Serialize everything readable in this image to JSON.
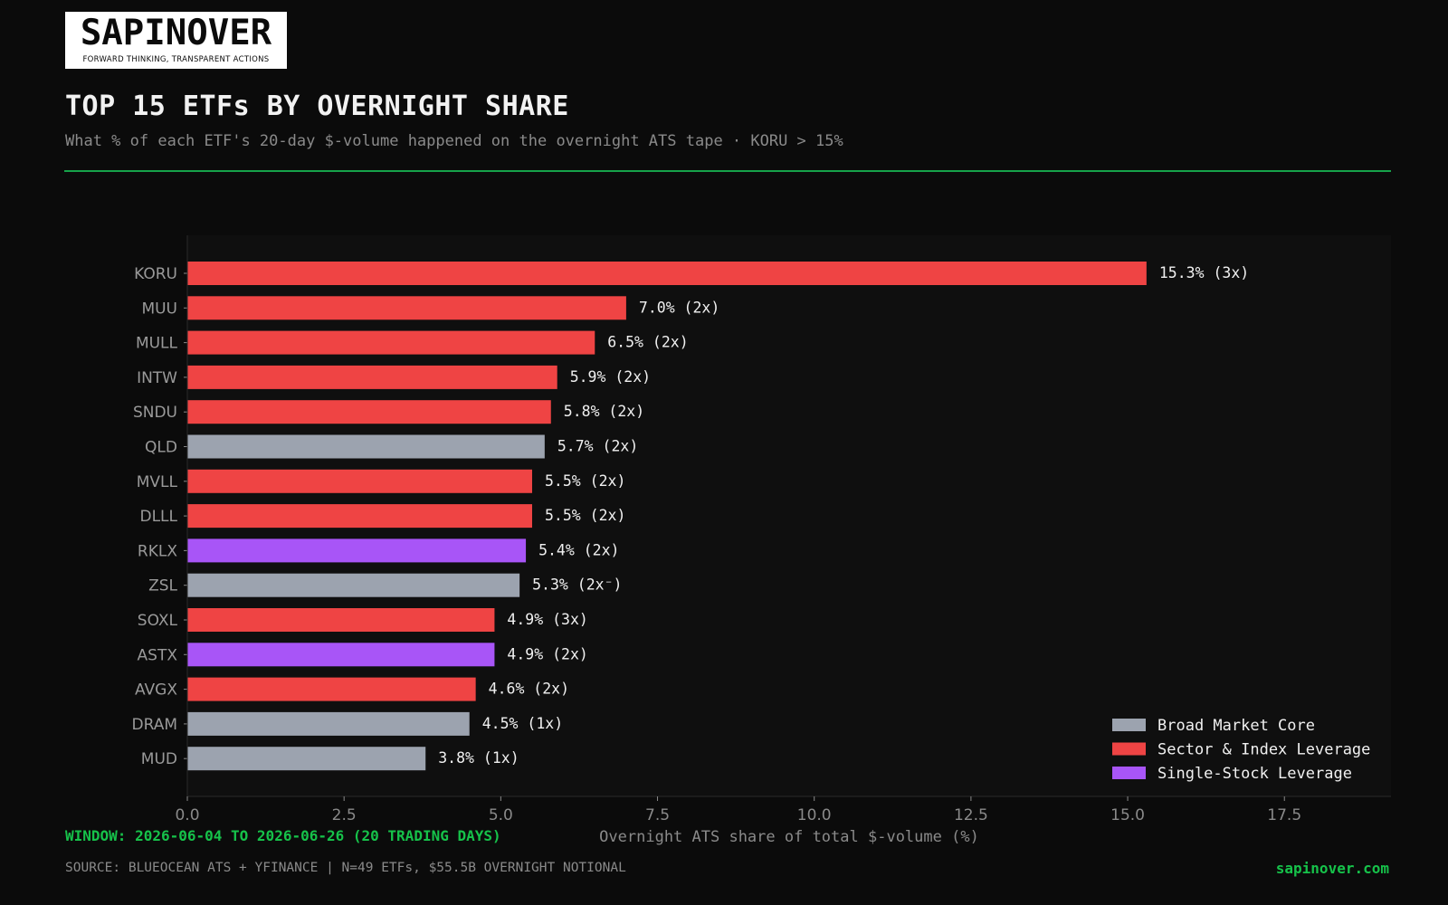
{
  "brand": {
    "logo_text": "SAPINOVER",
    "logo_tagline": "FORWARD THINKING, TRANSPARENT ACTIONS"
  },
  "header": {
    "title": "TOP 15 ETFs BY OVERNIGHT SHARE",
    "subtitle": "What % of each ETF's 20-day $-volume happened on the overnight ATS tape  ·  KORU > 15%"
  },
  "colors": {
    "background": "#0b0b0b",
    "accent": "#16a34a",
    "broad": "#9ca3af",
    "sector": "#ef4444",
    "single": "#a855f7"
  },
  "chart_data": {
    "type": "bar",
    "orientation": "horizontal",
    "xlabel": "Overnight ATS share of total $-volume  (%)",
    "xlim": [
      0,
      19.2
    ],
    "xticks": [
      0.0,
      2.5,
      5.0,
      7.5,
      10.0,
      12.5,
      15.0,
      17.5
    ],
    "xtick_labels": [
      "0.0",
      "2.5",
      "5.0",
      "7.5",
      "10.0",
      "12.5",
      "15.0",
      "17.5"
    ],
    "grid": false,
    "legend_placement": "bottom-right",
    "legend": [
      {
        "key": "broad",
        "label": "Broad Market Core",
        "color": "#9ca3af"
      },
      {
        "key": "sector",
        "label": "Sector & Index Leverage",
        "color": "#ef4444"
      },
      {
        "key": "single",
        "label": "Single-Stock Leverage",
        "color": "#a855f7"
      }
    ],
    "bars": [
      {
        "ticker": "KORU",
        "value": 15.3,
        "label": "15.3%",
        "leverage": "(3x)",
        "category": "sector"
      },
      {
        "ticker": "MUU",
        "value": 7.0,
        "label": "7.0%",
        "leverage": "(2x)",
        "category": "sector"
      },
      {
        "ticker": "MULL",
        "value": 6.5,
        "label": "6.5%",
        "leverage": "(2x)",
        "category": "sector"
      },
      {
        "ticker": "INTW",
        "value": 5.9,
        "label": "5.9%",
        "leverage": "(2x)",
        "category": "sector"
      },
      {
        "ticker": "SNDU",
        "value": 5.8,
        "label": "5.8%",
        "leverage": "(2x)",
        "category": "sector"
      },
      {
        "ticker": "QLD",
        "value": 5.7,
        "label": "5.7%",
        "leverage": "(2x)",
        "category": "broad"
      },
      {
        "ticker": "MVLL",
        "value": 5.5,
        "label": "5.5%",
        "leverage": "(2x)",
        "category": "sector"
      },
      {
        "ticker": "DLLL",
        "value": 5.5,
        "label": "5.5%",
        "leverage": "(2x)",
        "category": "sector"
      },
      {
        "ticker": "RKLX",
        "value": 5.4,
        "label": "5.4%",
        "leverage": "(2x)",
        "category": "single"
      },
      {
        "ticker": "ZSL",
        "value": 5.3,
        "label": "5.3%",
        "leverage": "(2x⁻)",
        "category": "broad"
      },
      {
        "ticker": "SOXL",
        "value": 4.9,
        "label": "4.9%",
        "leverage": "(3x)",
        "category": "sector"
      },
      {
        "ticker": "ASTX",
        "value": 4.9,
        "label": "4.9%",
        "leverage": "(2x)",
        "category": "single"
      },
      {
        "ticker": "AVGX",
        "value": 4.6,
        "label": "4.6%",
        "leverage": "(2x)",
        "category": "sector"
      },
      {
        "ticker": "DRAM",
        "value": 4.5,
        "label": "4.5%",
        "leverage": "(1x)",
        "category": "broad"
      },
      {
        "ticker": "MUD",
        "value": 3.8,
        "label": "3.8%",
        "leverage": "(1x)",
        "category": "broad"
      }
    ]
  },
  "footer": {
    "window": "WINDOW: 2026-06-04 TO 2026-06-26 (20 TRADING DAYS)",
    "source": "SOURCE: BLUEOCEAN ATS + YFINANCE  |  N=49 ETFs, $55.5B OVERNIGHT NOTIONAL",
    "site": "sapinover.com"
  }
}
